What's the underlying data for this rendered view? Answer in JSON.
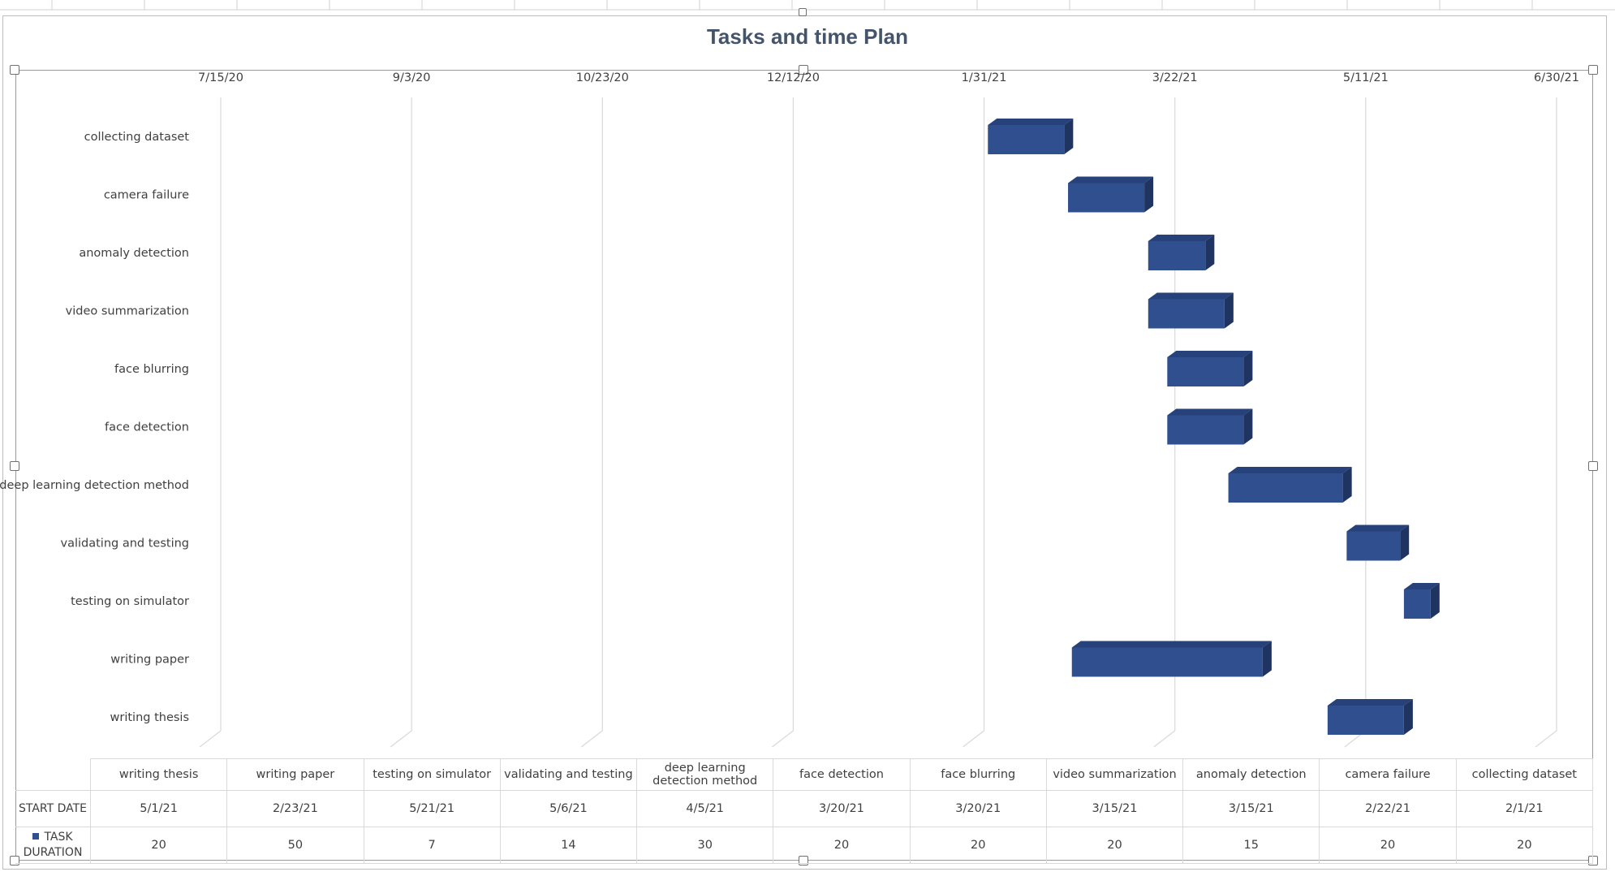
{
  "window": {
    "accent_color": "#2f4f8f",
    "bar_side_color": "#1f3460",
    "bar_top_color": "#27427a",
    "gridline_color": "#d9d9d9"
  },
  "chart_data": {
    "type": "bar",
    "orientation": "horizontal-gantt",
    "title": "Tasks and time Plan",
    "x_tick_labels": [
      "7/15/20",
      "9/3/20",
      "10/23/20",
      "12/12/20",
      "1/31/21",
      "3/22/21",
      "5/11/21",
      "6/30/21"
    ],
    "x_ticks": [
      "2020-07-15",
      "2020-09-03",
      "2020-10-23",
      "2020-12-12",
      "2021-01-31",
      "2021-03-22",
      "2021-05-11",
      "2021-06-30"
    ],
    "xlim": [
      "2020-07-15",
      "2021-06-30"
    ],
    "grid": true,
    "categories": [
      "writing thesis",
      "writing paper",
      "testing on simulator",
      "validating and testing",
      "deep learning detection method",
      "face detection",
      "face blurring",
      "video summarization",
      "anomaly detection",
      "camera failure ",
      "collecting dataset"
    ],
    "series": [
      {
        "name": "START DATE",
        "role": "offset",
        "values": [
          "2021-05-01",
          "2021-02-23",
          "2021-05-21",
          "2021-05-06",
          "2021-04-05",
          "2021-03-20",
          "2021-03-20",
          "2021-03-15",
          "2021-03-15",
          "2021-02-22",
          "2021-02-01"
        ]
      },
      {
        "name": "TASK DURATION",
        "role": "visible",
        "color": "#2f4f8f",
        "values": [
          20,
          50,
          7,
          14,
          30,
          20,
          20,
          20,
          15,
          20,
          20
        ]
      }
    ],
    "table": {
      "header": [
        "writing thesis",
        "writing paper",
        "testing on simulator",
        "validating and testing",
        "deep learning detection method",
        "face detection",
        "face blurring",
        "video summarization",
        "anomaly detection",
        "camera failure",
        "collecting dataset"
      ],
      "rows": [
        {
          "label": "START DATE",
          "cells": [
            "5/1/21",
            "2/23/21",
            "5/21/21",
            "5/6/21",
            "4/5/21",
            "3/20/21",
            "3/20/21",
            "3/15/21",
            "3/15/21",
            "2/22/21",
            "2/1/21"
          ]
        },
        {
          "label": "TASK DURATION",
          "legend_key": true,
          "cells": [
            "20",
            "50",
            "7",
            "14",
            "30",
            "20",
            "20",
            "20",
            "15",
            "20",
            "20"
          ]
        }
      ]
    }
  }
}
